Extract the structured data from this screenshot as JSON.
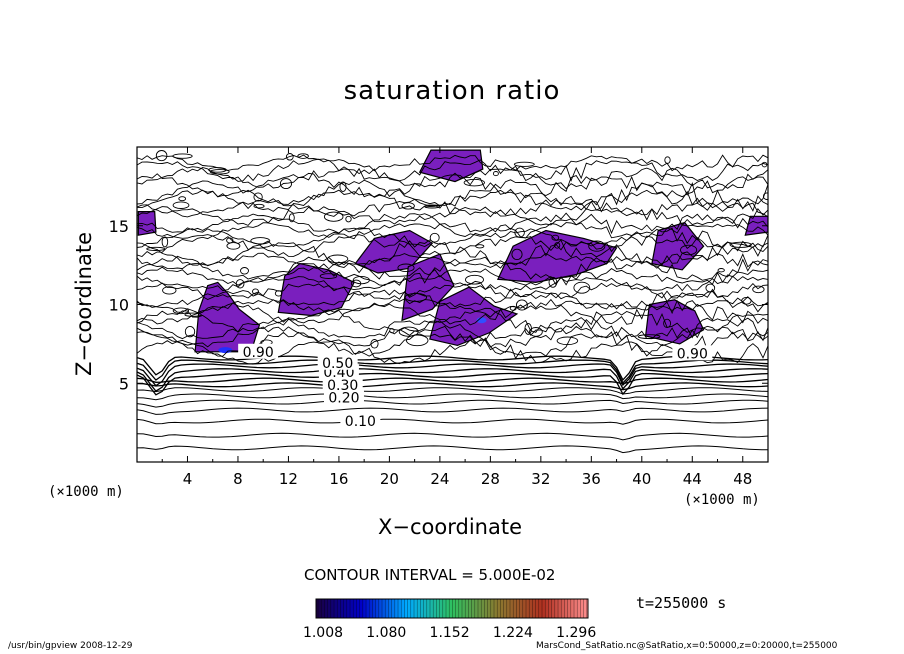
{
  "chart_data": {
    "type": "contour",
    "title": "saturation ratio",
    "xlabel": "X−coordinate",
    "ylabel": "Z−coordinate",
    "x_unit_left": "(×1000 m)",
    "x_unit_right": "(×1000 m)",
    "xlim": [
      0,
      50
    ],
    "ylim": [
      0,
      20
    ],
    "x_ticks": [
      4,
      8,
      12,
      16,
      20,
      24,
      28,
      32,
      36,
      40,
      44,
      48
    ],
    "y_ticks": [
      5,
      10,
      15
    ],
    "contour_interval": "CONTOUR INTERVAL = 5.000E-02",
    "contour_labels": [
      {
        "text": "0.10",
        "x": 17.7,
        "z": 2.6
      },
      {
        "text": "0.20",
        "x": 16.4,
        "z": 4.1
      },
      {
        "text": "0.30",
        "x": 16.3,
        "z": 4.9
      },
      {
        "text": "0.40",
        "x": 16.0,
        "z": 5.7
      },
      {
        "text": "0.50",
        "x": 15.9,
        "z": 6.3
      },
      {
        "text": "0.90",
        "x": 9.6,
        "z": 7.0
      },
      {
        "text": "0.90",
        "x": 44.0,
        "z": 6.9
      }
    ],
    "colorbar": {
      "tick_labels": [
        "1.008",
        "1.080",
        "1.152",
        "1.224",
        "1.296"
      ],
      "colors": [
        "#1a0040",
        "#0000c8",
        "#00aaff",
        "#2fc060",
        "#8a7a30",
        "#b03020",
        "#ff9090"
      ]
    },
    "fill_color": "#7a1fbe",
    "time_label": "t=255000 s"
  },
  "footer": {
    "left": "/usr/bin/gpview   2008-12-29",
    "right": "MarsCond_SatRatio.nc@SatRatio,x=0:50000,z=0:20000,t=255000"
  }
}
